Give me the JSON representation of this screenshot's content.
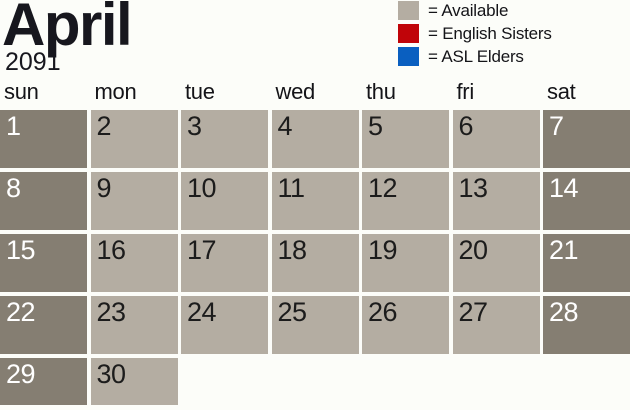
{
  "header": {
    "month": "April",
    "year": "2091"
  },
  "legend": {
    "items": [
      {
        "icon": "available-swatch",
        "color": "#b4ada2",
        "label": "= Available"
      },
      {
        "icon": "english-sisters-swatch",
        "color": "#c00409",
        "label": "= English Sisters"
      },
      {
        "icon": "asl-elders-swatch",
        "color": "#0a5fc0",
        "label": "= ASL Elders"
      }
    ]
  },
  "calendar": {
    "day_headers": [
      "sun",
      "mon",
      "tue",
      "wed",
      "thu",
      "fri",
      "sat"
    ],
    "cells": [
      {
        "day": "1",
        "variant": "weekend"
      },
      {
        "day": "2",
        "variant": "weekday"
      },
      {
        "day": "3",
        "variant": "weekday"
      },
      {
        "day": "4",
        "variant": "weekday"
      },
      {
        "day": "5",
        "variant": "weekday"
      },
      {
        "day": "6",
        "variant": "weekday"
      },
      {
        "day": "7",
        "variant": "weekend"
      },
      {
        "day": "8",
        "variant": "weekend"
      },
      {
        "day": "9",
        "variant": "weekday"
      },
      {
        "day": "10",
        "variant": "weekday"
      },
      {
        "day": "11",
        "variant": "weekday"
      },
      {
        "day": "12",
        "variant": "weekday"
      },
      {
        "day": "13",
        "variant": "weekday"
      },
      {
        "day": "14",
        "variant": "weekend"
      },
      {
        "day": "15",
        "variant": "weekend"
      },
      {
        "day": "16",
        "variant": "weekday"
      },
      {
        "day": "17",
        "variant": "weekday"
      },
      {
        "day": "18",
        "variant": "weekday"
      },
      {
        "day": "19",
        "variant": "weekday"
      },
      {
        "day": "20",
        "variant": "weekday"
      },
      {
        "day": "21",
        "variant": "weekend"
      },
      {
        "day": "22",
        "variant": "weekend"
      },
      {
        "day": "23",
        "variant": "weekday"
      },
      {
        "day": "24",
        "variant": "weekday"
      },
      {
        "day": "25",
        "variant": "weekday"
      },
      {
        "day": "26",
        "variant": "weekday"
      },
      {
        "day": "27",
        "variant": "weekday"
      },
      {
        "day": "28",
        "variant": "weekend"
      },
      {
        "day": "29",
        "variant": "weekend"
      },
      {
        "day": "30",
        "variant": "weekday"
      },
      {
        "day": "",
        "variant": "empty"
      },
      {
        "day": "",
        "variant": "empty"
      },
      {
        "day": "",
        "variant": "empty"
      },
      {
        "day": "",
        "variant": "empty"
      },
      {
        "day": "",
        "variant": "empty"
      }
    ]
  },
  "colors": {
    "background": "#fcfdf9",
    "weekday_cell": "#b4ada2",
    "weekend_cell": "#857e72",
    "weekday_text": "#1c1c1c",
    "weekend_text": "#ffffff",
    "title_text": "#17171e"
  }
}
